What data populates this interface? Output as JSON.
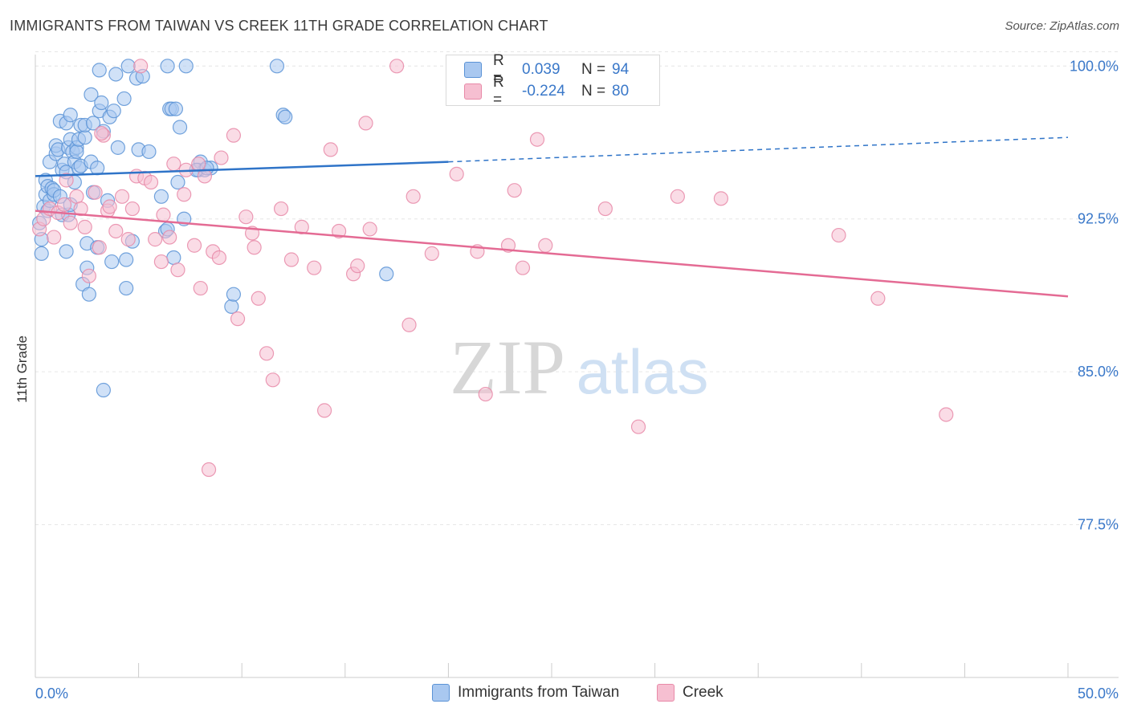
{
  "header": {
    "title": "IMMIGRANTS FROM TAIWAN VS CREEK 11TH GRADE CORRELATION CHART",
    "source": "Source: ZipAtlas.com"
  },
  "watermark": {
    "zip": "ZIP",
    "atlas": "atlas"
  },
  "colors": {
    "blue_fill": "#a9c8f0",
    "blue_stroke": "#5b93d6",
    "blue_line": "#2f74c8",
    "blue_text": "#3a78c9",
    "pink_fill": "#f6bfd1",
    "pink_stroke": "#e88aa8",
    "pink_line": "#e46b94",
    "grid": "#e6e6e6",
    "axis": "#cccccc"
  },
  "stats": [
    {
      "label": "R =",
      "r": "0.039",
      "n_label": "N =",
      "n": "94",
      "series": "blue"
    },
    {
      "label": "R =",
      "r": "-0.224",
      "n_label": "N =",
      "n": "80",
      "series": "pink"
    }
  ],
  "legend": [
    {
      "label": "Immigrants from Taiwan",
      "series": "blue"
    },
    {
      "label": "Creek",
      "series": "pink"
    }
  ],
  "chart_data": {
    "type": "scatter",
    "title": "IMMIGRANTS FROM TAIWAN VS CREEK 11TH GRADE CORRELATION CHART",
    "xlabel": "",
    "ylabel": "11th Grade",
    "xlim": [
      0,
      50
    ],
    "ylim": [
      70,
      100.8
    ],
    "x_tick_labels": [
      "0.0%",
      "50.0%"
    ],
    "y_ticks": [
      77.5,
      85.0,
      92.5,
      100.0
    ],
    "y_tick_labels": [
      "77.5%",
      "85.0%",
      "92.5%",
      "100.0%"
    ],
    "grid": true,
    "legend_position": "bottom",
    "series": [
      {
        "name": "Immigrants from Taiwan",
        "color": "#a9c8f0",
        "trend": {
          "x": [
            0,
            20,
            50
          ],
          "y": [
            94.6,
            95.3,
            96.5
          ],
          "solid_until": 20
        },
        "points": [
          [
            0.2,
            92.3
          ],
          [
            0.3,
            91.5
          ],
          [
            0.3,
            90.8
          ],
          [
            0.4,
            93.1
          ],
          [
            0.5,
            93.7
          ],
          [
            0.5,
            94.4
          ],
          [
            0.6,
            92.9
          ],
          [
            0.6,
            94.1
          ],
          [
            0.7,
            93.4
          ],
          [
            0.7,
            95.3
          ],
          [
            0.8,
            94.0
          ],
          [
            0.9,
            93.7
          ],
          [
            0.9,
            93.9
          ],
          [
            1.0,
            95.7
          ],
          [
            1.0,
            96.1
          ],
          [
            1.1,
            95.9
          ],
          [
            1.2,
            97.3
          ],
          [
            1.2,
            93.6
          ],
          [
            1.3,
            92.7
          ],
          [
            1.3,
            94.9
          ],
          [
            1.4,
            95.2
          ],
          [
            1.5,
            94.8
          ],
          [
            1.5,
            97.2
          ],
          [
            1.5,
            90.9
          ],
          [
            1.6,
            92.7
          ],
          [
            1.6,
            96.0
          ],
          [
            1.7,
            93.2
          ],
          [
            1.7,
            96.4
          ],
          [
            1.7,
            97.6
          ],
          [
            1.8,
            95.8
          ],
          [
            1.9,
            94.3
          ],
          [
            1.9,
            95.3
          ],
          [
            2.0,
            96.0
          ],
          [
            2.0,
            95.8
          ],
          [
            2.1,
            95.0
          ],
          [
            2.1,
            96.4
          ],
          [
            2.2,
            97.1
          ],
          [
            2.2,
            95.1
          ],
          [
            2.3,
            89.3
          ],
          [
            2.4,
            96.5
          ],
          [
            2.4,
            97.1
          ],
          [
            2.5,
            90.1
          ],
          [
            2.5,
            91.3
          ],
          [
            2.6,
            88.8
          ],
          [
            2.7,
            95.3
          ],
          [
            2.7,
            98.6
          ],
          [
            2.8,
            97.2
          ],
          [
            2.8,
            93.8
          ],
          [
            3.0,
            91.1
          ],
          [
            3.0,
            95.0
          ],
          [
            3.1,
            97.8
          ],
          [
            3.1,
            99.8
          ],
          [
            3.2,
            98.2
          ],
          [
            3.3,
            96.8
          ],
          [
            3.3,
            84.1
          ],
          [
            3.5,
            93.4
          ],
          [
            3.6,
            97.5
          ],
          [
            3.7,
            90.4
          ],
          [
            3.8,
            97.8
          ],
          [
            3.9,
            99.6
          ],
          [
            4.0,
            96.0
          ],
          [
            4.3,
            98.4
          ],
          [
            4.4,
            89.1
          ],
          [
            4.4,
            90.5
          ],
          [
            4.5,
            100.0
          ],
          [
            4.7,
            91.4
          ],
          [
            4.9,
            99.4
          ],
          [
            5.0,
            95.9
          ],
          [
            5.2,
            99.5
          ],
          [
            5.5,
            95.8
          ],
          [
            6.1,
            93.6
          ],
          [
            6.3,
            91.9
          ],
          [
            6.4,
            92.0
          ],
          [
            6.4,
            100.0
          ],
          [
            6.5,
            97.9
          ],
          [
            6.6,
            97.9
          ],
          [
            6.7,
            90.6
          ],
          [
            6.8,
            97.9
          ],
          [
            6.9,
            94.3
          ],
          [
            7.0,
            97.0
          ],
          [
            7.2,
            92.5
          ],
          [
            7.3,
            100.0
          ],
          [
            7.9,
            94.9
          ],
          [
            8.0,
            95.3
          ],
          [
            8.2,
            94.9
          ],
          [
            8.5,
            95.0
          ],
          [
            9.5,
            88.2
          ],
          [
            9.6,
            88.8
          ],
          [
            11.7,
            100.0
          ],
          [
            12.0,
            97.6
          ],
          [
            12.1,
            97.5
          ],
          [
            17.0,
            89.8
          ],
          [
            7.8,
            94.9
          ],
          [
            8.3,
            95.0
          ]
        ]
      },
      {
        "name": "Creek",
        "color": "#f6bfd1",
        "trend": {
          "x": [
            0,
            50
          ],
          "y": [
            92.9,
            88.7
          ],
          "solid_until": 50
        },
        "points": [
          [
            0.2,
            92.0
          ],
          [
            0.4,
            92.5
          ],
          [
            0.7,
            93.0
          ],
          [
            0.9,
            91.6
          ],
          [
            1.1,
            92.8
          ],
          [
            1.4,
            93.2
          ],
          [
            1.5,
            94.4
          ],
          [
            1.7,
            92.3
          ],
          [
            2.0,
            93.6
          ],
          [
            2.2,
            93.0
          ],
          [
            2.4,
            92.1
          ],
          [
            2.6,
            89.7
          ],
          [
            2.9,
            93.8
          ],
          [
            3.1,
            91.1
          ],
          [
            3.3,
            96.6
          ],
          [
            3.5,
            92.9
          ],
          [
            3.6,
            93.1
          ],
          [
            3.9,
            91.9
          ],
          [
            4.2,
            93.6
          ],
          [
            4.5,
            91.5
          ],
          [
            4.7,
            93.0
          ],
          [
            4.9,
            94.6
          ],
          [
            5.1,
            100.0
          ],
          [
            5.3,
            94.5
          ],
          [
            5.6,
            94.3
          ],
          [
            5.8,
            91.5
          ],
          [
            6.1,
            90.4
          ],
          [
            6.2,
            92.7
          ],
          [
            6.5,
            91.6
          ],
          [
            6.7,
            95.2
          ],
          [
            6.9,
            90.0
          ],
          [
            7.2,
            93.7
          ],
          [
            7.3,
            94.9
          ],
          [
            7.7,
            91.2
          ],
          [
            7.9,
            95.2
          ],
          [
            8.0,
            89.1
          ],
          [
            8.2,
            94.6
          ],
          [
            8.4,
            80.2
          ],
          [
            8.6,
            90.9
          ],
          [
            8.9,
            90.6
          ],
          [
            9.0,
            95.5
          ],
          [
            9.6,
            96.6
          ],
          [
            9.8,
            87.6
          ],
          [
            10.2,
            92.6
          ],
          [
            10.5,
            91.8
          ],
          [
            10.6,
            91.1
          ],
          [
            10.8,
            88.6
          ],
          [
            11.2,
            85.9
          ],
          [
            11.5,
            84.6
          ],
          [
            11.9,
            93.0
          ],
          [
            12.4,
            90.5
          ],
          [
            12.9,
            92.1
          ],
          [
            13.5,
            90.1
          ],
          [
            14.0,
            83.1
          ],
          [
            14.3,
            95.9
          ],
          [
            14.7,
            91.9
          ],
          [
            15.4,
            89.8
          ],
          [
            15.6,
            90.2
          ],
          [
            16.0,
            97.2
          ],
          [
            16.2,
            92.0
          ],
          [
            17.5,
            100.0
          ],
          [
            18.1,
            87.3
          ],
          [
            18.3,
            93.6
          ],
          [
            19.2,
            90.8
          ],
          [
            20.4,
            94.7
          ],
          [
            21.4,
            90.9
          ],
          [
            21.8,
            83.9
          ],
          [
            22.9,
            91.2
          ],
          [
            23.2,
            93.9
          ],
          [
            23.6,
            90.1
          ],
          [
            24.3,
            96.4
          ],
          [
            24.7,
            91.2
          ],
          [
            27.6,
            93.0
          ],
          [
            29.2,
            82.3
          ],
          [
            31.1,
            93.6
          ],
          [
            33.2,
            93.5
          ],
          [
            38.9,
            91.7
          ],
          [
            40.8,
            88.6
          ],
          [
            44.1,
            82.9
          ],
          [
            3.2,
            96.7
          ]
        ]
      }
    ]
  }
}
